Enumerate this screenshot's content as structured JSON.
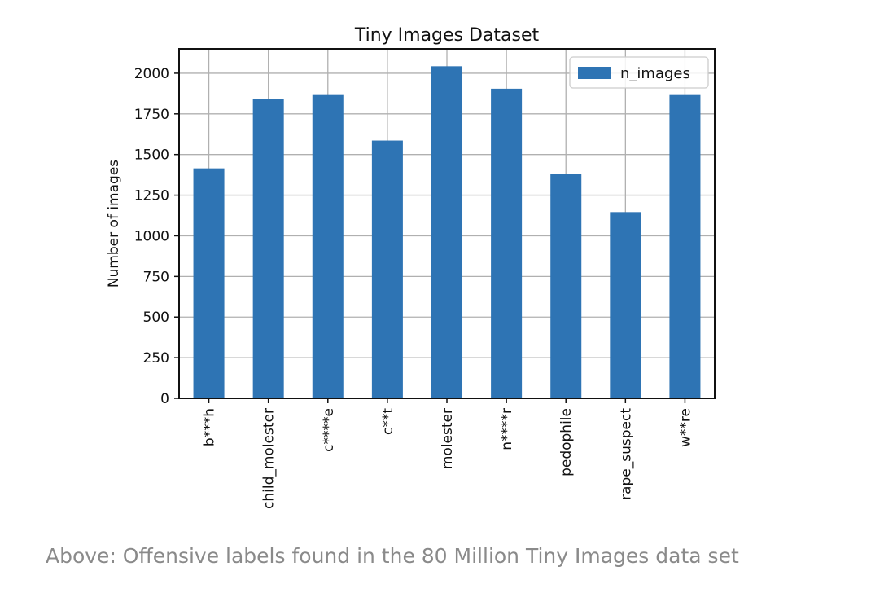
{
  "chart_data": {
    "type": "bar",
    "title": "Tiny Images Dataset",
    "xlabel": "",
    "ylabel": "Number of images",
    "categories": [
      "b***h",
      "child_molester",
      "c****e",
      "c**t",
      "molester",
      "n****r",
      "pedophile",
      "rape_suspect",
      "w**re"
    ],
    "series": [
      {
        "name": "n_images",
        "values": [
          1415,
          1843,
          1866,
          1586,
          2043,
          1905,
          1382,
          1146,
          1866
        ],
        "color": "#2e74b4"
      }
    ],
    "ylim": [
      0,
      2150
    ],
    "yticks": [
      0,
      250,
      500,
      750,
      1000,
      1250,
      1500,
      1750,
      2000
    ],
    "grid": true,
    "legend": "top-right"
  },
  "caption": "Above: Offensive labels found in the 80 Million Tiny Images data set"
}
